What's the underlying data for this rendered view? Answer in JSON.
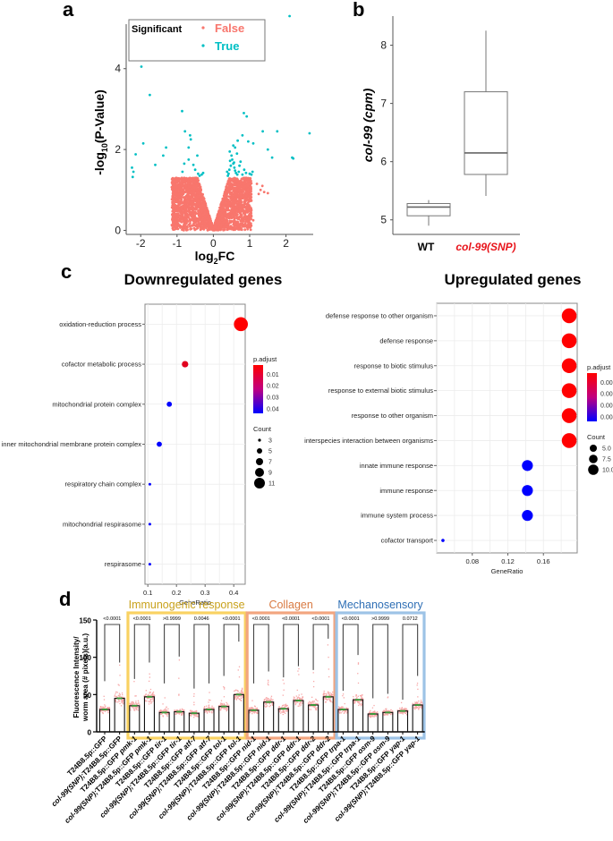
{
  "panels": {
    "a": "a",
    "b": "b",
    "c": "c",
    "d": "d"
  },
  "colors": {
    "false_color": "#F8766D",
    "true_color": "#00BFC4",
    "padj_high": "#FF0000",
    "padj_low": "#0000FF",
    "immunogenic": "#F9D262",
    "collagen": "#F2A57F",
    "mechanosensory": "#9DC3E6",
    "scatter_d": "#F7A8A8",
    "mean_marker": "#3A9A3A",
    "snp_label": "#E8141B"
  },
  "chart_data": [
    {
      "id": "a",
      "type": "scatter",
      "title": "",
      "xlabel": "log2FC",
      "ylabel": "-log10(P-Value)",
      "xlim": [
        -2.4,
        2.75
      ],
      "ylim": [
        -0.1,
        5.3
      ],
      "xticks": [
        -2,
        -1,
        0,
        1,
        2
      ],
      "yticks": [
        0,
        2,
        4
      ],
      "grid": false,
      "legend": {
        "title": "Significant",
        "entries": [
          "False",
          "True"
        ],
        "placement": "top-left"
      },
      "series": [
        {
          "name": "True",
          "points": [
            [
              2.1,
              5.3
            ],
            [
              -1.98,
              4.05
            ],
            [
              -1.75,
              3.35
            ],
            [
              -0.86,
              2.95
            ],
            [
              0.84,
              2.9
            ],
            [
              0.92,
              2.82
            ],
            [
              -1.93,
              2.15
            ],
            [
              -0.78,
              2.45
            ],
            [
              -0.64,
              2.35
            ],
            [
              -0.62,
              2.25
            ],
            [
              1.36,
              2.45
            ],
            [
              1.76,
              2.45
            ],
            [
              2.65,
              2.4
            ],
            [
              0.8,
              2.35
            ],
            [
              0.96,
              2.2
            ],
            [
              1.1,
              2.15
            ],
            [
              -1.3,
              2.05
            ],
            [
              -0.68,
              2.05
            ],
            [
              1.5,
              2.0
            ],
            [
              -2.14,
              1.88
            ],
            [
              -1.38,
              1.85
            ],
            [
              -0.44,
              1.85
            ],
            [
              1.62,
              1.8
            ],
            [
              2.17,
              1.8
            ],
            [
              2.2,
              1.78
            ],
            [
              -2.24,
              1.55
            ],
            [
              -2.2,
              1.45
            ],
            [
              -2.22,
              1.32
            ],
            [
              -1.6,
              1.62
            ],
            [
              -0.8,
              1.65
            ],
            [
              -0.68,
              1.75
            ],
            [
              -0.55,
              1.62
            ],
            [
              -0.5,
              1.5
            ],
            [
              -0.42,
              1.4
            ],
            [
              -0.38,
              1.35
            ],
            [
              -0.32,
              1.38
            ],
            [
              -0.28,
              1.42
            ],
            [
              -0.85,
              1.45
            ],
            [
              0.45,
              1.95
            ],
            [
              0.5,
              1.85
            ],
            [
              0.52,
              1.75
            ],
            [
              0.55,
              1.65
            ],
            [
              0.58,
              1.55
            ],
            [
              0.6,
              1.48
            ],
            [
              0.62,
              1.42
            ],
            [
              0.66,
              1.38
            ],
            [
              0.7,
              1.45
            ],
            [
              0.48,
              1.6
            ],
            [
              0.44,
              1.5
            ],
            [
              0.42,
              1.4
            ],
            [
              0.4,
              1.35
            ],
            [
              0.38,
              1.45
            ],
            [
              0.72,
              1.6
            ],
            [
              0.75,
              1.7
            ],
            [
              0.65,
              1.9
            ],
            [
              0.6,
              2.05
            ],
            [
              0.55,
              2.1
            ],
            [
              0.85,
              1.5
            ],
            [
              1.0,
              1.4
            ],
            [
              1.08,
              1.45
            ],
            [
              1.05,
              1.38
            ],
            [
              0.9,
              1.42
            ],
            [
              0.8,
              1.38
            ],
            [
              0.67,
              2.22
            ],
            [
              0.57,
              1.68
            ],
            [
              0.46,
              1.72
            ]
          ]
        },
        {
          "name": "False",
          "generated": "dense V-shaped cloud of ~thousands of non-significant genes for |log2FC| up to ~1.5 and -log10(P) up to ~1.3"
        }
      ]
    },
    {
      "id": "b",
      "type": "box",
      "ylabel": "col-99 (cpm)",
      "categories": [
        "WT",
        "col-99(SNP)"
      ],
      "ylim": [
        4.75,
        8.5
      ],
      "yticks": [
        5,
        6,
        7,
        8
      ],
      "boxes": [
        {
          "name": "WT",
          "min": 4.9,
          "q1": 5.07,
          "median": 5.22,
          "q3": 5.28,
          "max": 5.34
        },
        {
          "name": "col-99(SNP)",
          "min": 5.41,
          "q1": 5.78,
          "median": 6.15,
          "q3": 7.2,
          "max": 8.25
        }
      ]
    },
    {
      "id": "c-down",
      "type": "scatter",
      "title": "Downregulated genes",
      "xlabel": "GeneRatio",
      "xlim": [
        0.09,
        0.44
      ],
      "xticks": [
        0.1,
        0.2,
        0.3,
        0.4
      ],
      "terms": [
        "oxidation-reduction process",
        "cofactor metabolic process",
        "mitochondrial protein complex",
        "inner mitochondrial membrane protein complex",
        "respiratory chain complex",
        "mitochondrial respirasome",
        "respirasome"
      ],
      "gene_ratio": [
        0.425,
        0.23,
        0.175,
        0.14,
        0.107,
        0.107,
        0.107
      ],
      "count": [
        12,
        6,
        5,
        5,
        3,
        3,
        3
      ],
      "p_adjust": [
        0.003,
        0.008,
        0.045,
        0.045,
        0.045,
        0.045,
        0.045
      ],
      "color_legend": {
        "title": "p.adjust",
        "ticks": [
          "0.01",
          "0.02",
          "0.03",
          "0.04"
        ],
        "range": [
          0.003,
          0.045
        ]
      },
      "size_legend": {
        "title": "Count",
        "values": [
          "3",
          "5",
          "7",
          "9",
          "11"
        ]
      }
    },
    {
      "id": "c-up",
      "type": "scatter",
      "title": "Upregulated genes",
      "xlabel": "GeneRatio",
      "xlim": [
        0.04,
        0.198
      ],
      "xticks": [
        0.08,
        0.12,
        0.16
      ],
      "terms": [
        "defense response to other organism",
        "defense response",
        "response to biotic stimulus",
        "response to external biotic stimulus",
        "response to other organism",
        "interspecies interaction between organisms",
        "innate immune response",
        "immune response",
        "immune system process",
        "cofactor transport"
      ],
      "gene_ratio": [
        0.189,
        0.189,
        0.189,
        0.189,
        0.189,
        0.189,
        0.142,
        0.142,
        0.142,
        0.047
      ],
      "count": [
        12,
        12,
        12,
        12,
        12,
        12,
        9,
        9,
        9,
        3
      ],
      "p_adjust": [
        0.0006,
        0.0006,
        0.0006,
        0.0006,
        0.0006,
        0.0006,
        0.0042,
        0.0042,
        0.0042,
        0.0042
      ],
      "color_legend": {
        "title": "p.adjust",
        "ticks": [
          "0.001",
          "0.002",
          "0.003",
          "0.004"
        ],
        "range": [
          0.0006,
          0.0042
        ]
      },
      "size_legend": {
        "title": "Count",
        "values": [
          "5.0",
          "7.5",
          "10.0"
        ]
      }
    },
    {
      "id": "d",
      "type": "bar",
      "ylabel_line1": "Fluorescence Intensity/",
      "ylabel_line2": "worm area (# pixels)(a.u.)",
      "ylim": [
        0,
        150
      ],
      "yticks": [
        0,
        50,
        100,
        150
      ],
      "categories": [
        "T24B8.5p::GFP",
        "col-99(SNP);T24B8.5p::GFP",
        "T24B8.5p::GFP pmk-1",
        "col-99(SNP);T24B8.5p::GFP pmk-1",
        "T24B8.5p::GFP tir-1",
        "col-99(SNP);T24B8.5p::GFP tir-1",
        "T24B8.5p::GFP atf-7",
        "col-99(SNP);T24B8.5p::GFP atf-7",
        "T24B8.5p::GFP tol-1",
        "col-99(SNP);T24B8.5p::GFP tol-1",
        "T24B8.5p::GFP nid-1",
        "col-99(SNP);T24B8.5p::GFP nid-1",
        "T24B8.5p::GFP ddr-1",
        "col-99(SNP);T24B8.5p::GFP ddr-1",
        "T24B8.5p::GFP ddr-2",
        "col-99(SNP);T24B8.5p::GFP ddr-2",
        "T24B8.5p::GFP trpa-1",
        "col-99(SNP);T24B8.5p::GFP trpa-1",
        "T24B8.5p::GFP osm-9",
        "col-99(SNP);T24B8.5p::GFP osm-9",
        "T24B8.5p::GFP yap-1",
        "col-99(SNP);T24B8.5p::GFP yap-1"
      ],
      "values": [
        30,
        45,
        35,
        47,
        26,
        27,
        25,
        30,
        34,
        50,
        29,
        40,
        31,
        42,
        36,
        47,
        30,
        43,
        24,
        26,
        28,
        36
      ],
      "spread_max": [
        65,
        90,
        68,
        90,
        62,
        98,
        55,
        62,
        72,
        118,
        62,
        78,
        70,
        85,
        80,
        122,
        52,
        100,
        42,
        48,
        40,
        72
      ],
      "comparisons": [
        {
          "pair": [
            0,
            1
          ],
          "p": "<0.0001"
        },
        {
          "pair": [
            2,
            3
          ],
          "p": "<0.0001"
        },
        {
          "pair": [
            4,
            5
          ],
          "p": ">0.9999"
        },
        {
          "pair": [
            6,
            7
          ],
          "p": "0.0046"
        },
        {
          "pair": [
            8,
            9
          ],
          "p": "<0.0001"
        },
        {
          "pair": [
            10,
            11
          ],
          "p": "<0.0001"
        },
        {
          "pair": [
            12,
            13
          ],
          "p": "<0.0001"
        },
        {
          "pair": [
            14,
            15
          ],
          "p": "<0.0001"
        },
        {
          "pair": [
            16,
            17
          ],
          "p": "<0.0001"
        },
        {
          "pair": [
            18,
            19
          ],
          "p": ">0.9999"
        },
        {
          "pair": [
            20,
            21
          ],
          "p": "0.0712"
        }
      ],
      "groups": [
        {
          "name": "Immunogenic response",
          "range": [
            2,
            9
          ],
          "color_key": "immunogenic"
        },
        {
          "name": "Collagen",
          "range": [
            10,
            15
          ],
          "color_key": "collagen"
        },
        {
          "name": "Mechanosensory",
          "range": [
            16,
            21
          ],
          "color_key": "mechanosensory"
        }
      ]
    }
  ]
}
